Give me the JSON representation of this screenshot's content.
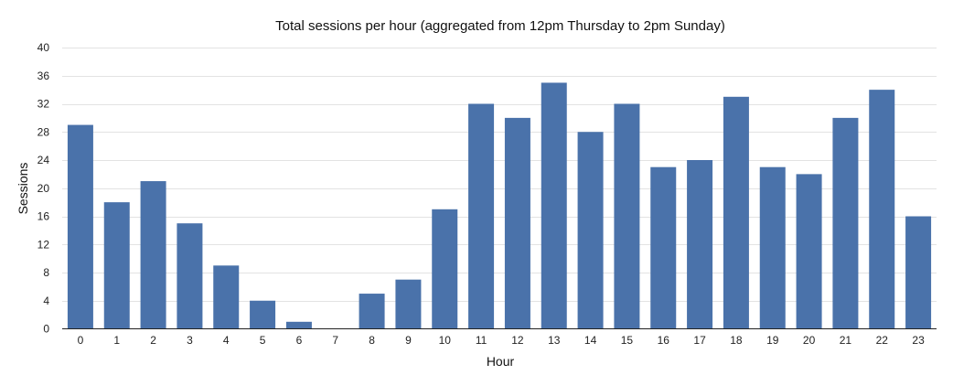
{
  "chart_data": {
    "type": "bar",
    "title": "Total sessions per hour (aggregated from 12pm Thursday to 2pm Sunday)",
    "xlabel": "Hour",
    "ylabel": "Sessions",
    "categories": [
      "0",
      "1",
      "2",
      "3",
      "4",
      "5",
      "6",
      "7",
      "8",
      "9",
      "10",
      "11",
      "12",
      "13",
      "14",
      "15",
      "16",
      "17",
      "18",
      "19",
      "20",
      "21",
      "22",
      "23"
    ],
    "values": [
      29,
      18,
      21,
      15,
      9,
      4,
      1,
      0,
      5,
      7,
      17,
      32,
      30,
      35,
      28,
      32,
      23,
      24,
      33,
      23,
      22,
      30,
      34,
      16
    ],
    "ylim": [
      0,
      40
    ],
    "yticks": [
      0,
      4,
      8,
      12,
      16,
      20,
      24,
      28,
      32,
      36,
      40
    ],
    "grid": true,
    "legend": "none",
    "bar_color": "#4a72aa"
  }
}
